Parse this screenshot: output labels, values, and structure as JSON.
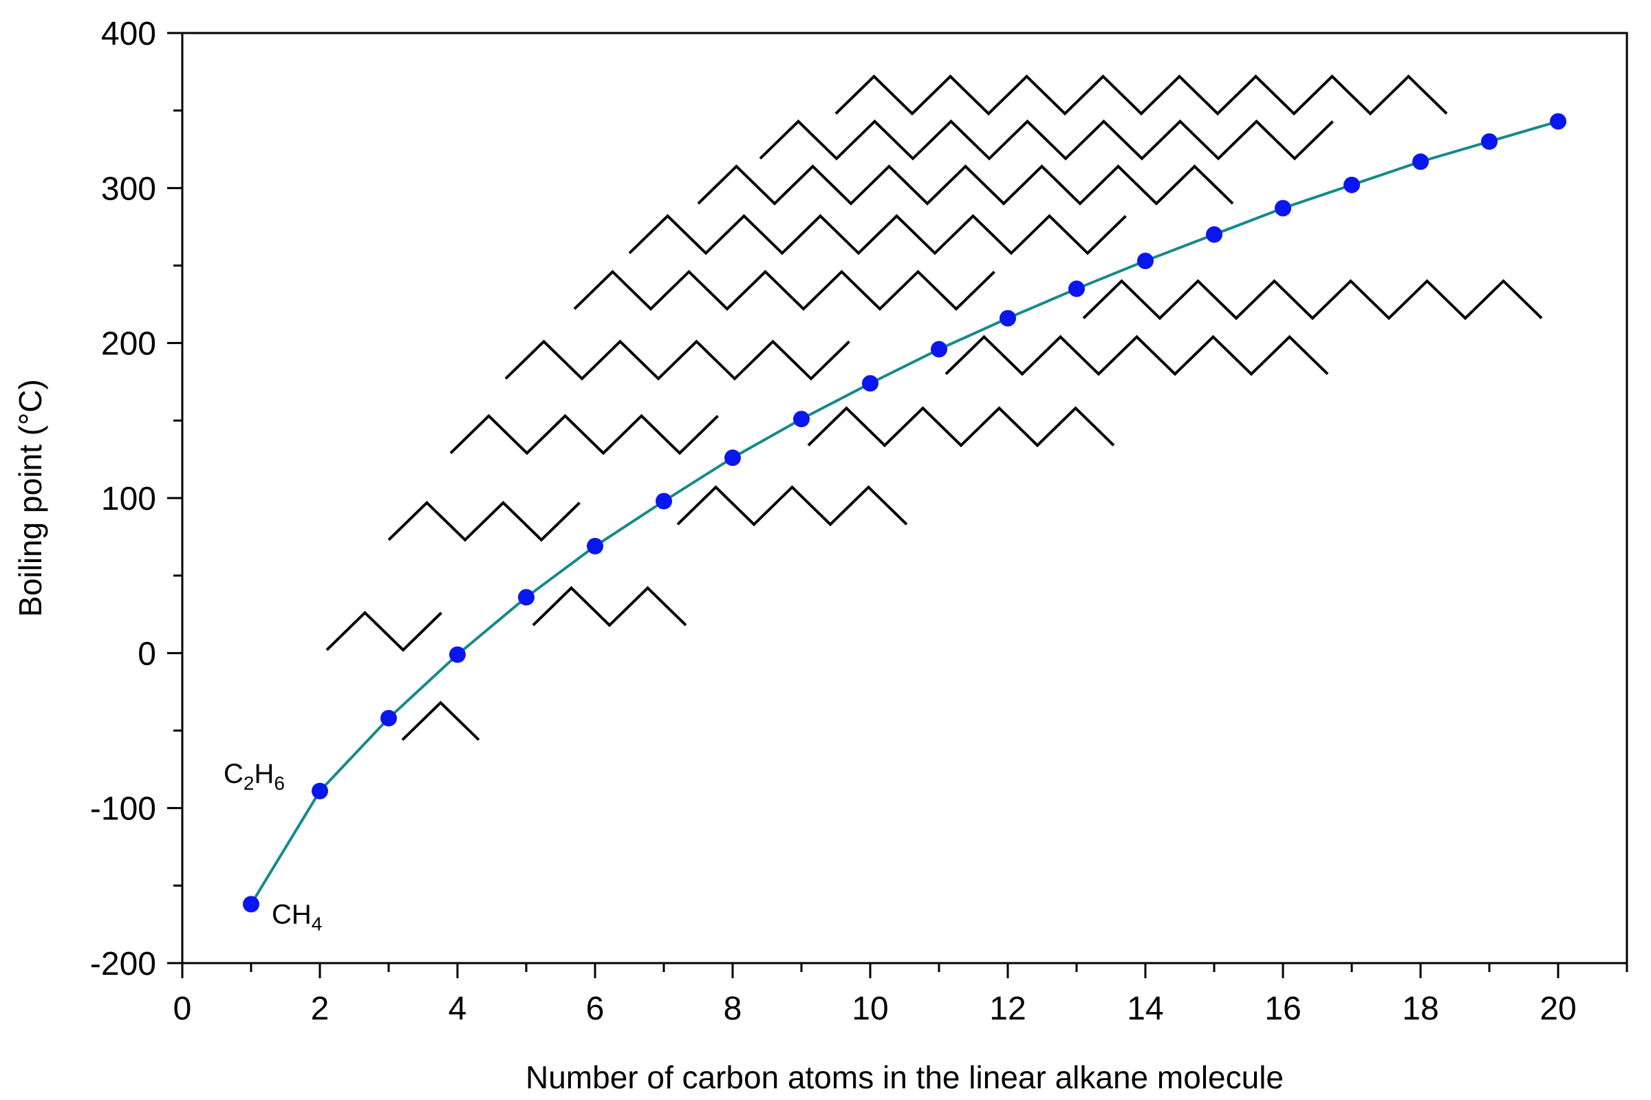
{
  "chart_data": {
    "type": "line",
    "title": "",
    "xlabel": "Number of carbon atoms in the linear alkane molecule",
    "ylabel": "Boiling point (°C)",
    "xlim": [
      0,
      21
    ],
    "ylim": [
      -200,
      400
    ],
    "x_ticks": [
      0,
      2,
      4,
      6,
      8,
      10,
      12,
      14,
      16,
      18,
      20
    ],
    "y_ticks": [
      -200,
      -100,
      0,
      100,
      200,
      300,
      400
    ],
    "grid": false,
    "colors": {
      "line": "#168a8a",
      "marker": "#0a16f0",
      "molecule": "#000000",
      "axis": "#000000"
    },
    "series": [
      {
        "name": "Boiling point",
        "x": [
          1,
          2,
          3,
          4,
          5,
          6,
          7,
          8,
          9,
          10,
          11,
          12,
          13,
          14,
          15,
          16,
          17,
          18,
          19,
          20
        ],
        "values": [
          -162,
          -89,
          -42,
          -1,
          36,
          69,
          98,
          126,
          151,
          174,
          196,
          216,
          235,
          253,
          270,
          287,
          302,
          317,
          330,
          343
        ]
      }
    ],
    "annotations": [
      {
        "label": "CH4",
        "base": "CH",
        "sub": "4",
        "for_n": 1
      },
      {
        "label": "C2H6",
        "a": "C",
        "a_sub": "2",
        "b": "H",
        "b_sub": "6",
        "for_n": 2
      }
    ],
    "molecules": [
      {
        "n": 3,
        "x_start": 3.2,
        "y_start": -56
      },
      {
        "n": 4,
        "x_start": 2.1,
        "y_start": 2
      },
      {
        "n": 5,
        "x_start": 5.1,
        "y_start": 18
      },
      {
        "n": 6,
        "x_start": 3.0,
        "y_start": 73
      },
      {
        "n": 7,
        "x_start": 7.2,
        "y_start": 83
      },
      {
        "n": 8,
        "x_start": 3.9,
        "y_start": 129
      },
      {
        "n": 9,
        "x_start": 9.1,
        "y_start": 134
      },
      {
        "n": 10,
        "x_start": 4.7,
        "y_start": 177
      },
      {
        "n": 11,
        "x_start": 11.1,
        "y_start": 180
      },
      {
        "n": 12,
        "x_start": 5.7,
        "y_start": 222
      },
      {
        "n": 13,
        "x_start": 13.1,
        "y_start": 216
      },
      {
        "n": 14,
        "x_start": 6.5,
        "y_start": 258
      },
      {
        "n": 15,
        "x_start": 7.5,
        "y_start": 290
      },
      {
        "n": 16,
        "x_start": 8.4,
        "y_start": 319
      },
      {
        "n": 17,
        "x_start": 9.5,
        "y_start": 348
      }
    ]
  }
}
